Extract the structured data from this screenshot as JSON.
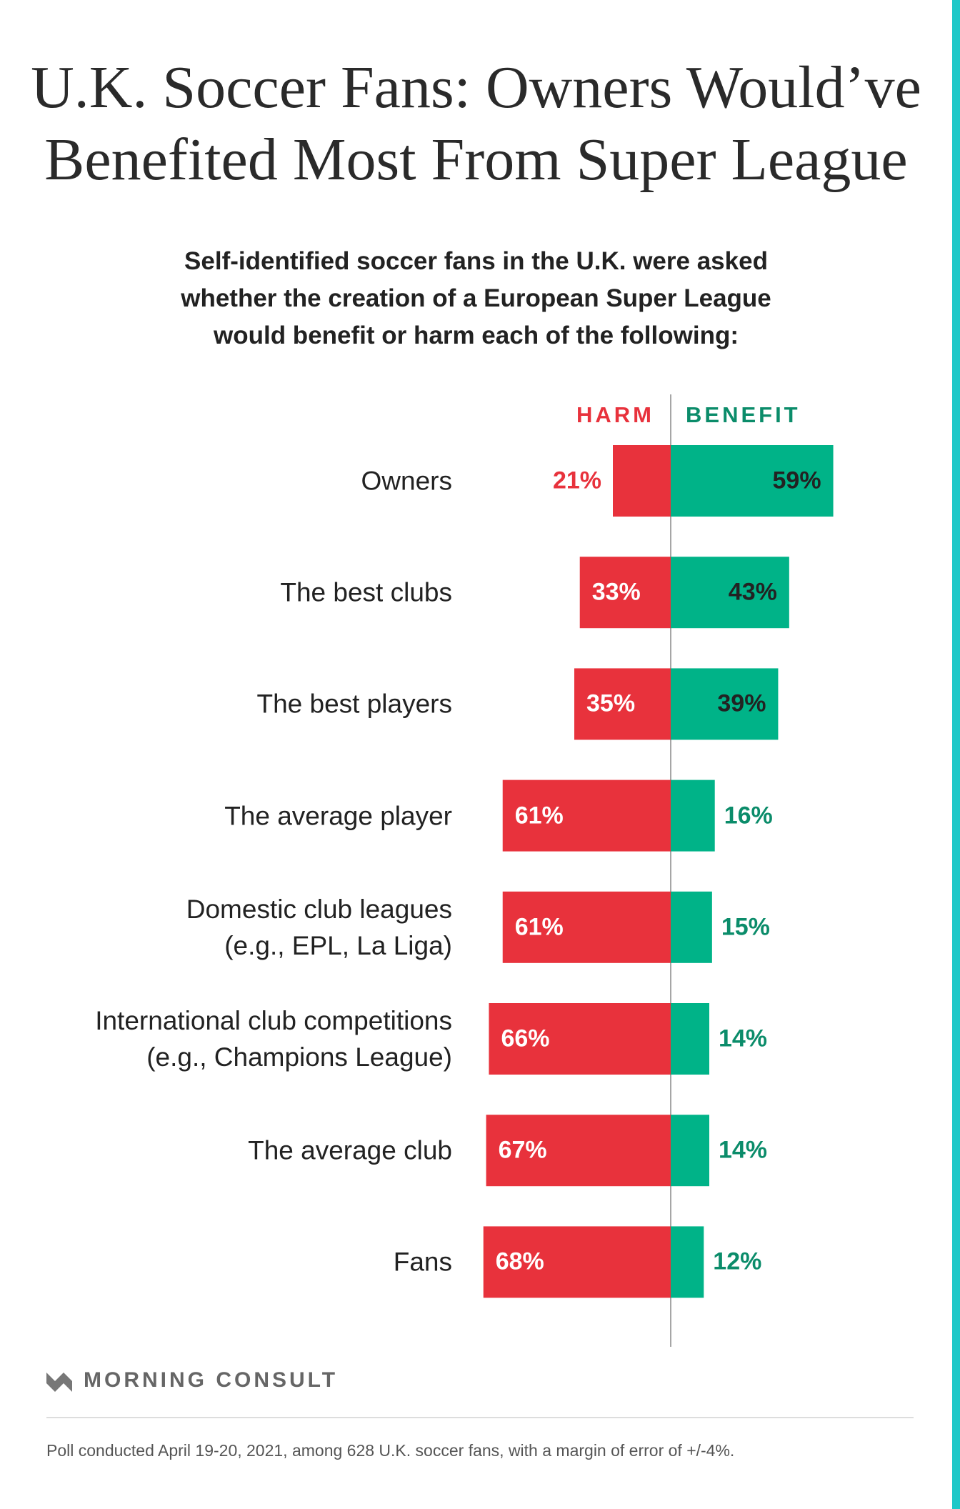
{
  "chart_data": {
    "type": "bar",
    "title": "U.K. Soccer Fans: Owners Would’ve\nBenefited Most From Super League",
    "subtitle": "Self-identified soccer fans in the U.K. were asked\nwhether the creation of a European Super League\nwould benefit or harm each of the following:",
    "categories": [
      "Owners",
      "The best clubs",
      "The best players",
      "The average player",
      "Domestic club leagues\n(e.g., EPL, La Liga)",
      "International club competitions\n(e.g., Champions League)",
      "The average club",
      "Fans"
    ],
    "series": [
      {
        "name": "HARM",
        "color": "#e8323c",
        "values": [
          21,
          33,
          35,
          61,
          61,
          66,
          67,
          68
        ],
        "value_labels": [
          "21%",
          "33%",
          "35%",
          "61%",
          "61%",
          "66%",
          "67%",
          "68%"
        ]
      },
      {
        "name": "BENEFIT",
        "color": "#00b388",
        "values": [
          59,
          43,
          39,
          16,
          15,
          14,
          14,
          12
        ],
        "value_labels": [
          "59%",
          "43%",
          "39%",
          "16%",
          "15%",
          "14%",
          "14%",
          "12%"
        ]
      }
    ]
  },
  "footer": {
    "brand": "MORNING CONSULT",
    "note": "Poll conducted April 19-20, 2021, among 628 U.K. soccer fans, with a margin of error of +/-4%."
  }
}
